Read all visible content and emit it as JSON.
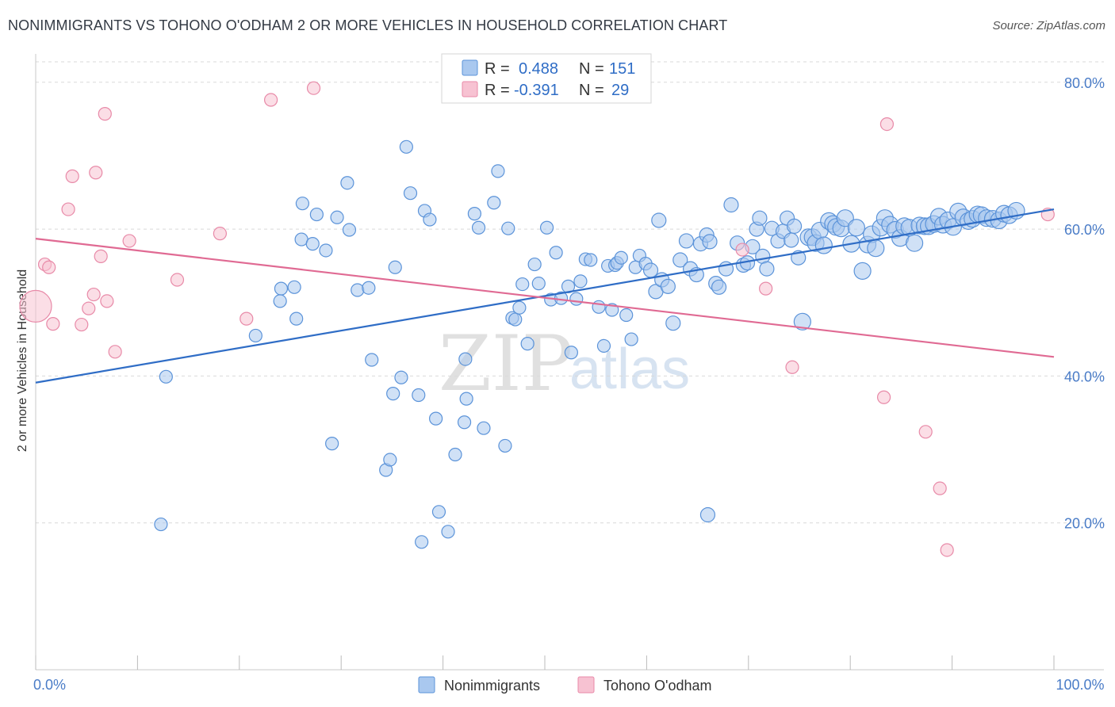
{
  "title": "NONIMMIGRANTS VS TOHONO O'ODHAM 2 OR MORE VEHICLES IN HOUSEHOLD CORRELATION CHART",
  "source": "Source: ZipAtlas.com",
  "watermark": {
    "part1": "ZIP",
    "part2": "atlas"
  },
  "colors": {
    "blue_fill": "#a9c8ef",
    "blue_stroke": "#5b93d9",
    "blue_line": "#2f6dc6",
    "pink_fill": "#f7c2d2",
    "pink_stroke": "#e88aa8",
    "pink_line": "#e06a93",
    "grid": "#d9d9d9",
    "tick_text": "#4a7cc7"
  },
  "stats": [
    {
      "r_label": "R =",
      "r_value": "0.488",
      "n_label": "N =",
      "n_value": "151"
    },
    {
      "r_label": "R =",
      "r_value": "-0.391",
      "n_label": "N =",
      "n_value": "29"
    }
  ],
  "chart_data": {
    "type": "scatter",
    "title": "NONIMMIGRANTS VS TOHONO O'ODHAM 2 OR MORE VEHICLES IN HOUSEHOLD CORRELATION CHART",
    "xlabel": "",
    "ylabel": "2 or more Vehicles in Household",
    "xlim": [
      0,
      100
    ],
    "ylim": [
      0,
      83
    ],
    "x_ticks": [
      0,
      10,
      20,
      30,
      40,
      50,
      60,
      70,
      80,
      90,
      100
    ],
    "x_tick_labels": {
      "0": "0.0%",
      "100": "100.0%"
    },
    "y_ticks": [
      20,
      40,
      60,
      80
    ],
    "y_tick_labels": [
      "20.0%",
      "40.0%",
      "60.0%",
      "80.0%"
    ],
    "grid": "horizontal-dashed",
    "legend": "bottom-center",
    "series": [
      {
        "name": "Nonimmigrants",
        "color": "#a9c8ef",
        "trend": {
          "x1": 0,
          "y1": 39.1,
          "x2": 100,
          "y2": 62.7
        },
        "points": [
          [
            12.3,
            19.8
          ],
          [
            12.8,
            39.9
          ],
          [
            21.6,
            45.5
          ],
          [
            24.1,
            51.9
          ],
          [
            24.0,
            50.2
          ],
          [
            25.4,
            52.1
          ],
          [
            25.6,
            47.8
          ],
          [
            26.1,
            58.6
          ],
          [
            26.2,
            63.5
          ],
          [
            27.2,
            58.0
          ],
          [
            27.6,
            62.0
          ],
          [
            28.5,
            57.1
          ],
          [
            29.1,
            30.8
          ],
          [
            29.6,
            61.6
          ],
          [
            30.6,
            66.3
          ],
          [
            30.8,
            59.9
          ],
          [
            31.6,
            51.7
          ],
          [
            32.7,
            52.0
          ],
          [
            33.0,
            42.2
          ],
          [
            34.4,
            27.2
          ],
          [
            34.8,
            28.6
          ],
          [
            35.1,
            37.6
          ],
          [
            35.3,
            54.8
          ],
          [
            35.9,
            39.8
          ],
          [
            36.4,
            71.2
          ],
          [
            36.8,
            64.9
          ],
          [
            37.6,
            37.4
          ],
          [
            37.9,
            17.4
          ],
          [
            38.2,
            62.5
          ],
          [
            38.7,
            61.3
          ],
          [
            39.3,
            34.2
          ],
          [
            39.6,
            21.5
          ],
          [
            40.5,
            18.8
          ],
          [
            41.2,
            29.3
          ],
          [
            42.2,
            42.3
          ],
          [
            42.3,
            36.9
          ],
          [
            42.1,
            33.7
          ],
          [
            43.1,
            62.1
          ],
          [
            43.5,
            60.2
          ],
          [
            44.0,
            32.9
          ],
          [
            45.0,
            63.6
          ],
          [
            45.4,
            67.9
          ],
          [
            46.1,
            30.5
          ],
          [
            46.4,
            60.1
          ],
          [
            46.8,
            47.9
          ],
          [
            47.1,
            47.7
          ],
          [
            47.5,
            49.3
          ],
          [
            47.8,
            52.5
          ],
          [
            48.3,
            44.4
          ],
          [
            49.0,
            55.2
          ],
          [
            49.4,
            52.6
          ],
          [
            50.2,
            60.2
          ],
          [
            50.6,
            50.4
          ],
          [
            51.1,
            56.8
          ],
          [
            51.6,
            50.6
          ],
          [
            52.3,
            52.2
          ],
          [
            52.6,
            43.2
          ],
          [
            53.1,
            50.5
          ],
          [
            53.5,
            52.9
          ],
          [
            54.0,
            55.9
          ],
          [
            54.5,
            55.8
          ],
          [
            55.3,
            49.4
          ],
          [
            55.8,
            44.1
          ],
          [
            56.2,
            55.0
          ],
          [
            56.6,
            49.0
          ],
          [
            56.9,
            55.1
          ],
          [
            57.1,
            55.4
          ],
          [
            57.5,
            56.1
          ],
          [
            58.0,
            48.3
          ],
          [
            58.5,
            45.0
          ],
          [
            58.9,
            54.8
          ],
          [
            59.3,
            56.4
          ],
          [
            59.9,
            55.3
          ],
          [
            60.4,
            54.4
          ],
          [
            60.9,
            51.5
          ],
          [
            61.2,
            61.2
          ],
          [
            61.5,
            53.1
          ],
          [
            62.1,
            52.2
          ],
          [
            62.6,
            47.2
          ],
          [
            63.3,
            55.8
          ],
          [
            63.9,
            58.4
          ],
          [
            64.3,
            54.6
          ],
          [
            64.9,
            53.8
          ],
          [
            65.3,
            58.0
          ],
          [
            65.9,
            59.2
          ],
          [
            66.2,
            58.3
          ],
          [
            66.8,
            52.6
          ],
          [
            67.1,
            52.1
          ],
          [
            67.8,
            54.6
          ],
          [
            68.3,
            63.3
          ],
          [
            68.9,
            58.1
          ],
          [
            69.5,
            55.1
          ],
          [
            69.9,
            55.4
          ],
          [
            70.4,
            57.6
          ],
          [
            70.8,
            60.0
          ],
          [
            71.1,
            61.5
          ],
          [
            71.4,
            56.3
          ],
          [
            71.8,
            54.6
          ],
          [
            72.3,
            60.1
          ],
          [
            72.9,
            58.4
          ],
          [
            73.4,
            59.7
          ],
          [
            73.8,
            61.5
          ],
          [
            74.2,
            58.5
          ],
          [
            74.5,
            60.4
          ],
          [
            74.9,
            56.1
          ],
          [
            75.3,
            47.4
          ],
          [
            75.9,
            58.9
          ],
          [
            76.3,
            58.9
          ],
          [
            76.6,
            58.1
          ],
          [
            77.0,
            59.8
          ],
          [
            77.4,
            57.8
          ],
          [
            77.9,
            61.1
          ],
          [
            78.3,
            60.7
          ],
          [
            78.6,
            60.3
          ],
          [
            79.1,
            60.1
          ],
          [
            79.5,
            61.5
          ],
          [
            80.1,
            58.0
          ],
          [
            80.6,
            60.2
          ],
          [
            81.2,
            54.3
          ],
          [
            81.7,
            57.9
          ],
          [
            82.1,
            59.3
          ],
          [
            82.5,
            57.4
          ],
          [
            83.0,
            60.2
          ],
          [
            83.4,
            61.5
          ],
          [
            83.9,
            60.6
          ],
          [
            84.4,
            59.9
          ],
          [
            84.9,
            58.8
          ],
          [
            85.3,
            60.4
          ],
          [
            85.8,
            60.2
          ],
          [
            86.3,
            58.1
          ],
          [
            86.8,
            60.5
          ],
          [
            87.3,
            60.4
          ],
          [
            87.7,
            60.4
          ],
          [
            88.2,
            60.7
          ],
          [
            88.7,
            61.7
          ],
          [
            89.1,
            60.6
          ],
          [
            89.6,
            61.2
          ],
          [
            90.1,
            60.3
          ],
          [
            90.6,
            62.4
          ],
          [
            91.1,
            61.6
          ],
          [
            91.6,
            61.1
          ],
          [
            92.0,
            61.4
          ],
          [
            92.5,
            62.0
          ],
          [
            92.9,
            61.9
          ],
          [
            93.4,
            61.5
          ],
          [
            94.0,
            61.4
          ],
          [
            94.6,
            61.2
          ],
          [
            95.1,
            62.1
          ],
          [
            95.6,
            61.9
          ],
          [
            96.3,
            62.5
          ],
          [
            66.0,
            21.1
          ]
        ]
      },
      {
        "name": "Tohono O'odham",
        "color": "#f7c2d2",
        "trend": {
          "x1": 0,
          "y1": 58.7,
          "x2": 100,
          "y2": 42.6
        },
        "points": [
          [
            0.0,
            49.5
          ],
          [
            0.9,
            55.2
          ],
          [
            1.3,
            54.8
          ],
          [
            1.7,
            47.1
          ],
          [
            3.2,
            62.7
          ],
          [
            3.6,
            67.2
          ],
          [
            4.5,
            47.0
          ],
          [
            5.2,
            49.2
          ],
          [
            5.7,
            51.1
          ],
          [
            5.9,
            67.7
          ],
          [
            6.4,
            56.3
          ],
          [
            6.8,
            75.7
          ],
          [
            7.0,
            50.2
          ],
          [
            7.8,
            43.3
          ],
          [
            9.2,
            58.4
          ],
          [
            13.9,
            53.1
          ],
          [
            18.1,
            59.4
          ],
          [
            20.7,
            47.8
          ],
          [
            23.1,
            77.6
          ],
          [
            27.3,
            79.2
          ],
          [
            69.4,
            57.2
          ],
          [
            71.7,
            51.9
          ],
          [
            74.3,
            41.2
          ],
          [
            83.3,
            37.1
          ],
          [
            83.6,
            74.3
          ],
          [
            87.4,
            32.4
          ],
          [
            88.8,
            24.7
          ],
          [
            89.5,
            16.3
          ],
          [
            99.4,
            62.0
          ]
        ]
      }
    ]
  }
}
